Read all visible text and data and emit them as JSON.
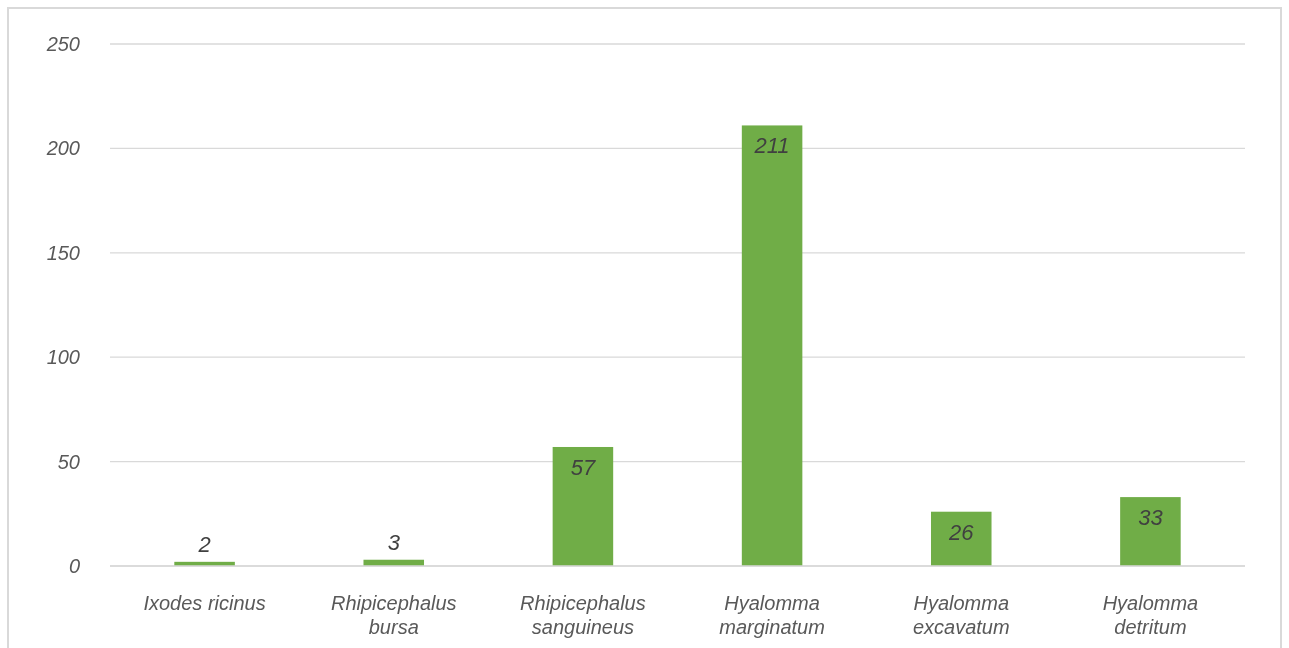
{
  "chart_data": {
    "type": "bar",
    "categories": [
      "Ixodes ricinus",
      "Rhipicephalus bursa",
      "Rhipicephalus sanguineus",
      "Hyalomma marginatum",
      "Hyalomma excavatum",
      "Hyalomma detritum"
    ],
    "values": [
      2,
      3,
      57,
      211,
      26,
      33
    ],
    "color": "#70ad47",
    "ylim": [
      0,
      250
    ],
    "yticks": [
      0,
      50,
      100,
      150,
      200,
      250
    ],
    "grid": "y",
    "data_labels": true
  }
}
